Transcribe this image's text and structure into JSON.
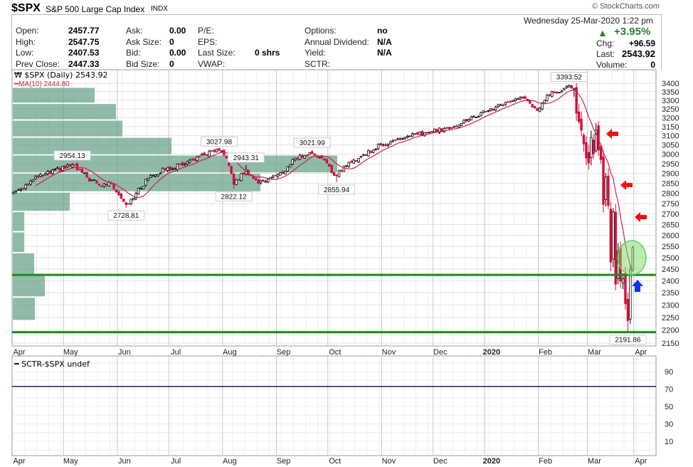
{
  "header": {
    "symbol": "$SPX",
    "name": "S&P 500 Large Cap Index",
    "exchange": "INDX",
    "copyright": "© StockCharts.com",
    "datetime": "Wednesday  25-Mar-2020  1:22 pm",
    "pct_change": "+3.95%",
    "chg_label": "Chg:",
    "chg_value": "+96.59",
    "last_label": "Last:",
    "last_value": "2543.92",
    "volume_label": "Volume:",
    "volume_value": "0",
    "col1": [
      {
        "label": "Open:",
        "value": "2457.77"
      },
      {
        "label": "High:",
        "value": "2547.75"
      },
      {
        "label": "Low:",
        "value": "2407.53"
      },
      {
        "label": "Prev Close:",
        "value": "2447.33"
      }
    ],
    "col2": [
      {
        "label": "Ask:",
        "value": "0.00"
      },
      {
        "label": "Ask Size:",
        "value": "0"
      },
      {
        "label": "Bid:",
        "value": "0.00"
      },
      {
        "label": "Bid Size:",
        "value": "0"
      }
    ],
    "col3": [
      {
        "label": "P/E:",
        "value": ""
      },
      {
        "label": "EPS:",
        "value": ""
      },
      {
        "label": "Last Size:",
        "value": "0 shrs"
      },
      {
        "label": "VWAP:",
        "value": ""
      }
    ],
    "col4": [
      {
        "label": "Options:",
        "value": "no"
      },
      {
        "label": "Annual Dividend:",
        "value": "N/A"
      },
      {
        "label": "Yield:",
        "value": "N/A"
      },
      {
        "label": "SCTR:",
        "value": ""
      }
    ]
  },
  "colors": {
    "up_arrow": "#2e7d32",
    "down_candle": "#d0103a",
    "ma": "#d0204a",
    "vbp": "#5f9e82",
    "support": "#1a8a1a",
    "sctr": "#1a1a80",
    "red_arrow": "#ee1111",
    "blue_arrow": "#1133ee"
  },
  "chart_data": [
    {
      "type": "candlestick",
      "title": "$SPX (Daily) 2543.92",
      "ma_legend": "MA(10) 2444.80",
      "ma_period": 10,
      "scale": "log",
      "ylim": [
        2150,
        3400
      ],
      "yticks": [
        2150,
        2200,
        2250,
        2300,
        2350,
        2400,
        2450,
        2500,
        2550,
        2600,
        2650,
        2700,
        2750,
        2800,
        2850,
        2900,
        2950,
        3000,
        3050,
        3100,
        3150,
        3200,
        3250,
        3300,
        3350,
        3400
      ],
      "months": [
        {
          "label": "Apr",
          "day": 0
        },
        {
          "label": "May",
          "day": 21
        },
        {
          "label": "Jun",
          "day": 43
        },
        {
          "label": "Jul",
          "day": 64
        },
        {
          "label": "Aug",
          "day": 86
        },
        {
          "label": "Sep",
          "day": 108
        },
        {
          "label": "Oct",
          "day": 129
        },
        {
          "label": "Nov",
          "day": 151
        },
        {
          "label": "Dec",
          "day": 172
        },
        {
          "label": "2020",
          "day": 193,
          "bold": true
        },
        {
          "label": "Feb",
          "day": 215
        },
        {
          "label": "Mar",
          "day": 235
        },
        {
          "label": "Apr",
          "day": 254
        }
      ],
      "close_anchors": [
        [
          0,
          2805
        ],
        [
          10,
          2880
        ],
        [
          24,
          2945
        ],
        [
          30,
          2880
        ],
        [
          35,
          2840
        ],
        [
          40,
          2850
        ],
        [
          46,
          2745
        ],
        [
          50,
          2800
        ],
        [
          56,
          2890
        ],
        [
          62,
          2920
        ],
        [
          70,
          2950
        ],
        [
          76,
          2990
        ],
        [
          84,
          3020
        ],
        [
          87,
          2980
        ],
        [
          90,
          2845
        ],
        [
          95,
          2920
        ],
        [
          100,
          2850
        ],
        [
          105,
          2880
        ],
        [
          110,
          2900
        ],
        [
          115,
          2980
        ],
        [
          122,
          3005
        ],
        [
          126,
          2980
        ],
        [
          131,
          2890
        ],
        [
          136,
          2940
        ],
        [
          142,
          2990
        ],
        [
          150,
          3050
        ],
        [
          160,
          3090
        ],
        [
          170,
          3120
        ],
        [
          178,
          3145
        ],
        [
          186,
          3190
        ],
        [
          194,
          3240
        ],
        [
          202,
          3290
        ],
        [
          208,
          3320
        ],
        [
          212,
          3260
        ],
        [
          214,
          3240
        ],
        [
          218,
          3330
        ],
        [
          225,
          3370
        ],
        [
          227,
          3386
        ],
        [
          229,
          3370
        ],
        [
          230,
          3225
        ],
        [
          232,
          3130
        ],
        [
          234,
          2980
        ],
        [
          235,
          2954
        ],
        [
          236,
          3090
        ],
        [
          237,
          3003
        ],
        [
          238,
          3130
        ],
        [
          239,
          3023
        ],
        [
          240,
          2972
        ],
        [
          241,
          2746
        ],
        [
          242,
          2882
        ],
        [
          243,
          2741
        ],
        [
          244,
          2480
        ],
        [
          245,
          2711
        ],
        [
          246,
          2386
        ],
        [
          247,
          2529
        ],
        [
          248,
          2398
        ],
        [
          249,
          2409
        ],
        [
          250,
          2305
        ],
        [
          251,
          2237
        ],
        [
          252,
          2447
        ],
        [
          253,
          2544
        ]
      ],
      "annotations": [
        {
          "day": 24,
          "value": "2954.13",
          "pos": "above"
        },
        {
          "day": 46,
          "value": "2728.81",
          "pos": "below"
        },
        {
          "day": 84,
          "value": "3027.98",
          "pos": "above"
        },
        {
          "day": 90,
          "value": "2822.12",
          "pos": "below"
        },
        {
          "day": 95,
          "value": "2943.31",
          "pos": "above"
        },
        {
          "day": 122,
          "value": "3021.99",
          "pos": "above"
        },
        {
          "day": 132,
          "value": "2855.94",
          "pos": "below"
        },
        {
          "day": 227,
          "value": "3393.52",
          "pos": "above"
        },
        {
          "day": 251,
          "value": "2191.86",
          "pos": "below"
        }
      ],
      "volume_by_price": [
        {
          "range": [
            2237,
            2332
          ],
          "volume": 31
        },
        {
          "range": [
            2332,
            2427
          ],
          "volume": 45
        },
        {
          "range": [
            2427,
            2522
          ],
          "volume": 30
        },
        {
          "range": [
            2522,
            2617
          ],
          "volume": 16
        },
        {
          "range": [
            2617,
            2712
          ],
          "volume": 16
        },
        {
          "range": [
            2712,
            2807
          ],
          "volume": 80
        },
        {
          "range": [
            2807,
            2902
          ],
          "volume": 348
        },
        {
          "range": [
            2902,
            2997
          ],
          "volume": 456
        },
        {
          "range": [
            2997,
            3092
          ],
          "volume": 223
        },
        {
          "range": [
            3092,
            3187
          ],
          "volume": 154
        },
        {
          "range": [
            3187,
            3282
          ],
          "volume": 145
        },
        {
          "range": [
            3282,
            3377
          ],
          "volume": 115
        }
      ],
      "support_lines": [
        2425,
        2192
      ]
    },
    {
      "type": "line",
      "title": "SCTR-$SPX undef",
      "ylim": [
        0,
        100
      ],
      "yticks": [
        10,
        30,
        50,
        70,
        90
      ],
      "value": 73
    }
  ]
}
